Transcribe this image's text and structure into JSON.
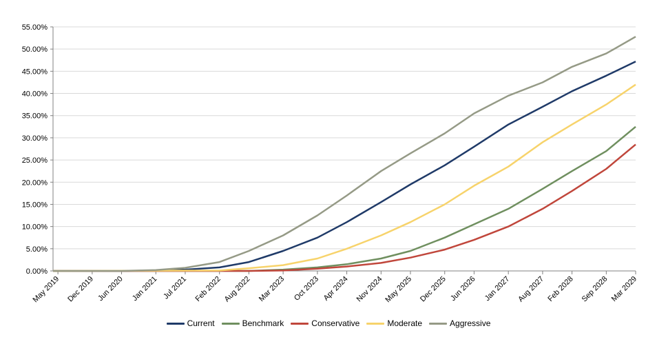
{
  "chart_data": {
    "type": "line",
    "title": "",
    "xlabel": "",
    "ylabel": "",
    "ylim": [
      0,
      0.55
    ],
    "y_ticks": [
      0,
      0.05,
      0.1,
      0.15,
      0.2,
      0.25,
      0.3,
      0.35,
      0.4,
      0.45,
      0.5,
      0.55
    ],
    "y_tick_labels": [
      "0.00%",
      "5.00%",
      "10.00%",
      "15.00%",
      "20.00%",
      "25.00%",
      "30.00%",
      "35.00%",
      "40.00%",
      "45.00%",
      "50.00%",
      "55.00%"
    ],
    "x_range": [
      "2019-04",
      "2029-03"
    ],
    "x_ticks": [
      {
        "date": "2019-05",
        "label": "May 2019"
      },
      {
        "date": "2019-12",
        "label": "Dec 2019"
      },
      {
        "date": "2020-06",
        "label": "Jun 2020"
      },
      {
        "date": "2021-01",
        "label": "Jan 2021"
      },
      {
        "date": "2021-07",
        "label": "Jul 2021"
      },
      {
        "date": "2022-02",
        "label": "Feb 2022"
      },
      {
        "date": "2022-08",
        "label": "Aug 2022"
      },
      {
        "date": "2023-03",
        "label": "Mar 2023"
      },
      {
        "date": "2023-10",
        "label": "Oct 2023"
      },
      {
        "date": "2024-04",
        "label": "Apr 2024"
      },
      {
        "date": "2024-11",
        "label": "Nov 2024"
      },
      {
        "date": "2025-05",
        "label": "May 2025"
      },
      {
        "date": "2025-12",
        "label": "Dec 2025"
      },
      {
        "date": "2026-06",
        "label": "Jun 2026"
      },
      {
        "date": "2027-01",
        "label": "Jan 2027"
      },
      {
        "date": "2027-08",
        "label": "Aug 2027"
      },
      {
        "date": "2028-02",
        "label": "Feb 2028"
      },
      {
        "date": "2028-09",
        "label": "Sep 2028"
      },
      {
        "date": "2029-03",
        "label": "Mar 2029"
      }
    ],
    "grid": {
      "horizontal": true,
      "vertical": false
    },
    "legend_position": "bottom",
    "series": [
      {
        "name": "Current",
        "color": "#1f3a68",
        "points": [
          [
            "2019-04",
            0
          ],
          [
            "2020-06",
            0
          ],
          [
            "2021-01",
            0.001
          ],
          [
            "2021-07",
            0.003
          ],
          [
            "2022-02",
            0.008
          ],
          [
            "2022-08",
            0.02
          ],
          [
            "2023-03",
            0.045
          ],
          [
            "2023-10",
            0.075
          ],
          [
            "2024-04",
            0.11
          ],
          [
            "2024-11",
            0.155
          ],
          [
            "2025-05",
            0.195
          ],
          [
            "2025-12",
            0.238
          ],
          [
            "2026-06",
            0.28
          ],
          [
            "2027-01",
            0.33
          ],
          [
            "2027-08",
            0.37
          ],
          [
            "2028-02",
            0.405
          ],
          [
            "2028-09",
            0.44
          ],
          [
            "2029-03",
            0.472
          ]
        ]
      },
      {
        "name": "Benchmark",
        "color": "#6f8f5f",
        "points": [
          [
            "2019-04",
            0
          ],
          [
            "2022-08",
            0
          ],
          [
            "2023-03",
            0.003
          ],
          [
            "2023-10",
            0.008
          ],
          [
            "2024-04",
            0.015
          ],
          [
            "2024-11",
            0.028
          ],
          [
            "2025-05",
            0.045
          ],
          [
            "2025-12",
            0.075
          ],
          [
            "2026-06",
            0.105
          ],
          [
            "2027-01",
            0.14
          ],
          [
            "2027-08",
            0.185
          ],
          [
            "2028-02",
            0.225
          ],
          [
            "2028-09",
            0.27
          ],
          [
            "2029-03",
            0.325
          ]
        ]
      },
      {
        "name": "Conservative",
        "color": "#c0463b",
        "points": [
          [
            "2019-04",
            0
          ],
          [
            "2022-08",
            0
          ],
          [
            "2023-03",
            0.001
          ],
          [
            "2023-10",
            0.005
          ],
          [
            "2024-04",
            0.01
          ],
          [
            "2024-11",
            0.018
          ],
          [
            "2025-05",
            0.03
          ],
          [
            "2025-12",
            0.048
          ],
          [
            "2026-06",
            0.07
          ],
          [
            "2027-01",
            0.1
          ],
          [
            "2027-08",
            0.14
          ],
          [
            "2028-02",
            0.18
          ],
          [
            "2028-09",
            0.23
          ],
          [
            "2029-03",
            0.285
          ]
        ]
      },
      {
        "name": "Moderate",
        "color": "#f7d36b",
        "points": [
          [
            "2019-04",
            0
          ],
          [
            "2022-02",
            0.001
          ],
          [
            "2022-08",
            0.006
          ],
          [
            "2023-03",
            0.013
          ],
          [
            "2023-10",
            0.028
          ],
          [
            "2024-04",
            0.05
          ],
          [
            "2024-11",
            0.08
          ],
          [
            "2025-05",
            0.11
          ],
          [
            "2025-12",
            0.15
          ],
          [
            "2026-06",
            0.192
          ],
          [
            "2027-01",
            0.235
          ],
          [
            "2027-08",
            0.29
          ],
          [
            "2028-02",
            0.33
          ],
          [
            "2028-09",
            0.375
          ],
          [
            "2029-03",
            0.42
          ]
        ]
      },
      {
        "name": "Aggressive",
        "color": "#959a86",
        "points": [
          [
            "2019-04",
            0
          ],
          [
            "2020-06",
            0.0
          ],
          [
            "2021-01",
            0.002
          ],
          [
            "2021-07",
            0.007
          ],
          [
            "2022-02",
            0.02
          ],
          [
            "2022-08",
            0.045
          ],
          [
            "2023-03",
            0.08
          ],
          [
            "2023-10",
            0.125
          ],
          [
            "2024-04",
            0.17
          ],
          [
            "2024-11",
            0.225
          ],
          [
            "2025-05",
            0.265
          ],
          [
            "2025-12",
            0.31
          ],
          [
            "2026-06",
            0.355
          ],
          [
            "2027-01",
            0.395
          ],
          [
            "2027-08",
            0.425
          ],
          [
            "2028-02",
            0.46
          ],
          [
            "2028-09",
            0.49
          ],
          [
            "2029-03",
            0.528
          ]
        ]
      }
    ]
  }
}
